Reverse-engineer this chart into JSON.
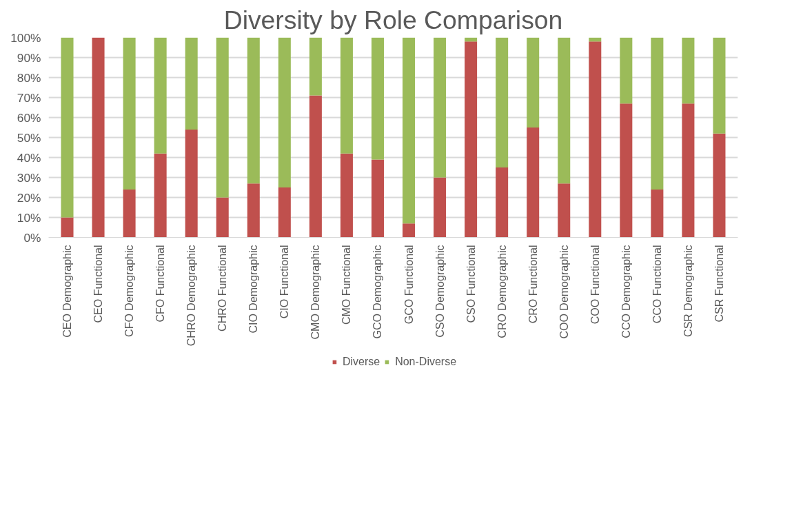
{
  "chart_data": {
    "type": "bar",
    "title": "Diversity by Role Comparison",
    "stacked": true,
    "categories": [
      "CEO Demographic",
      "CEO Functional",
      "CFO Demographic",
      "CFO Functional",
      "CHRO Demographic",
      "CHRO Functional",
      "CIO Demographic",
      "CIO Functional",
      "CMO Demographic",
      "CMO Functional",
      "GCO Demographic",
      "GCO Functional",
      "CSO Demographic",
      "CSO Functional",
      "CRO Demographic",
      "CRO Functional",
      "COO Demographic",
      "COO Functional",
      "CCO Demographic",
      "CCO Functional",
      "CSR Demographic",
      "CSR Functional"
    ],
    "series": [
      {
        "name": "Diverse",
        "color": "#c0504d",
        "values": [
          10,
          100,
          24,
          42,
          54,
          20,
          27,
          25,
          71,
          42,
          39,
          7,
          30,
          98,
          35,
          55,
          27,
          98,
          67,
          24,
          67,
          52
        ]
      },
      {
        "name": "Non-Diverse",
        "color": "#9bbb59",
        "values": [
          90,
          0,
          76,
          58,
          46,
          80,
          73,
          75,
          29,
          58,
          61,
          93,
          70,
          2,
          65,
          45,
          73,
          2,
          33,
          76,
          33,
          48
        ]
      }
    ],
    "ylim": [
      0,
      100
    ],
    "yticks": [
      {
        "value": 0,
        "label": "0%"
      },
      {
        "value": 10,
        "label": "10%"
      },
      {
        "value": 20,
        "label": "20%"
      },
      {
        "value": 30,
        "label": "30%"
      },
      {
        "value": 40,
        "label": "40%"
      },
      {
        "value": 50,
        "label": "50%"
      },
      {
        "value": 60,
        "label": "60%"
      },
      {
        "value": 70,
        "label": "70%"
      },
      {
        "value": 80,
        "label": "80%"
      },
      {
        "value": 90,
        "label": "90%"
      },
      {
        "value": 100,
        "label": "100%"
      }
    ],
    "grid": "y",
    "legend": "bottom"
  }
}
